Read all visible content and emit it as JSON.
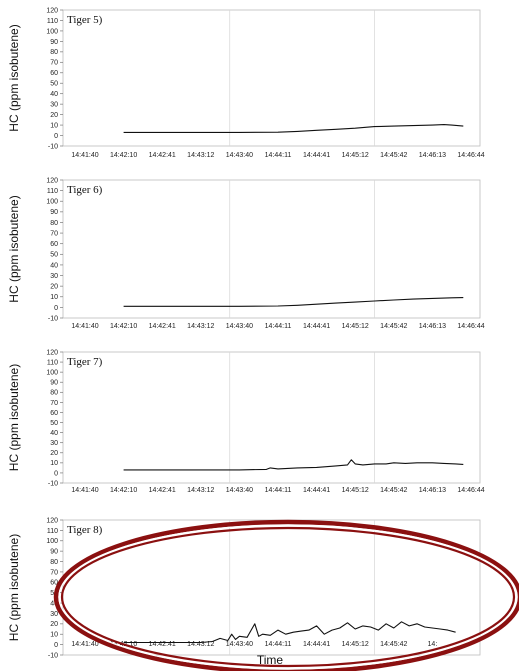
{
  "chart_data": [
    {
      "type": "line",
      "title": "Tiger 5)",
      "ylabel": "HC (ppm isobutene)",
      "xlabel": "",
      "ylim": [
        -10,
        120
      ],
      "yticks": [
        "120",
        "110",
        "100",
        "90",
        "80",
        "70",
        "60",
        "50",
        "40",
        "30",
        "20",
        "10",
        "0",
        "-10"
      ],
      "xticks": [
        "14:41:40",
        "14:42:10",
        "14:42:41",
        "14:43:12",
        "14:43:40",
        "14:44:11",
        "14:44:41",
        "14:45:12",
        "14:45:42",
        "14:46:13",
        "14:46:44"
      ],
      "grid": "vertical-lines",
      "series": [
        {
          "x": [
            1,
            2,
            3,
            4,
            5,
            5.5,
            6,
            6.5,
            7,
            7.5,
            8,
            8.5,
            9,
            9.3,
            9.5,
            9.8
          ],
          "values": [
            3,
            3,
            3,
            3,
            3.2,
            4,
            5,
            6,
            7,
            8.5,
            9,
            9.5,
            10,
            10.5,
            10,
            9
          ]
        }
      ]
    },
    {
      "type": "line",
      "title": "Tiger 6)",
      "ylabel": "HC (ppm isobutene)",
      "xlabel": "",
      "ylim": [
        -10,
        120
      ],
      "yticks": [
        "120",
        "110",
        "100",
        "90",
        "80",
        "70",
        "60",
        "50",
        "40",
        "30",
        "20",
        "10",
        "0",
        "-10"
      ],
      "xticks": [
        "14:41:40",
        "14:42:10",
        "14:42:41",
        "14:43:12",
        "14:43:40",
        "14:44:11",
        "14:44:41",
        "14:45:12",
        "14:45:42",
        "14:46:13",
        "14:46:44"
      ],
      "grid": "vertical-lines",
      "series": [
        {
          "x": [
            1,
            2,
            3,
            4,
            5,
            5.5,
            6,
            6.5,
            7,
            7.5,
            8,
            8.5,
            9,
            9.5,
            9.8
          ],
          "values": [
            1,
            1,
            1,
            1,
            1.3,
            2,
            3,
            4,
            5,
            6,
            7,
            7.8,
            8.5,
            9,
            9.2
          ]
        }
      ]
    },
    {
      "type": "line",
      "title": "Tiger 7)",
      "ylabel": "HC (ppm isobutene)",
      "xlabel": "",
      "ylim": [
        -10,
        120
      ],
      "yticks": [
        "120",
        "110",
        "100",
        "90",
        "80",
        "70",
        "60",
        "50",
        "40",
        "30",
        "20",
        "10",
        "0",
        "-10"
      ],
      "xticks": [
        "14:41:40",
        "14:42:10",
        "14:42:41",
        "14:43:12",
        "14:43:40",
        "14:44:11",
        "14:44:41",
        "14:45:12",
        "14:45:42",
        "14:46:13",
        "14:46:44"
      ],
      "grid": "vertical-lines",
      "series": [
        {
          "x": [
            1,
            2,
            3,
            4,
            4.7,
            4.8,
            5,
            5.5,
            6,
            6.5,
            6.8,
            6.9,
            7,
            7.2,
            7.5,
            7.8,
            8,
            8.3,
            8.6,
            9,
            9.3,
            9.6,
            9.8
          ],
          "values": [
            3,
            3,
            3,
            3,
            3.5,
            5,
            4,
            5,
            5.5,
            7,
            8,
            13,
            9,
            8,
            9,
            9,
            10,
            9.5,
            10,
            10,
            9.5,
            9,
            8.5
          ]
        }
      ]
    },
    {
      "type": "line",
      "title": "Tiger 8)",
      "ylabel": "HC (ppm isobutene)",
      "xlabel": "Time",
      "ylim": [
        -10,
        120
      ],
      "yticks": [
        "120",
        "110",
        "100",
        "90",
        "80",
        "70",
        "60",
        "50",
        "40",
        "30",
        "20",
        "10",
        "0",
        "-10"
      ],
      "xticks": [
        "14:41:40",
        "14:42:10",
        "14:42:41",
        "14:43:12",
        "14:43:40",
        "14:44:11",
        "14:44:41",
        "14:45:12",
        "14:45:42",
        "14:"
      ],
      "grid": "vertical-lines",
      "series": [
        {
          "x": [
            1,
            2,
            3,
            3.3,
            3.5,
            3.7,
            3.8,
            3.9,
            4,
            4.2,
            4.4,
            4.5,
            4.6,
            4.8,
            5,
            5.2,
            5.4,
            5.6,
            5.8,
            6,
            6.2,
            6.4,
            6.6,
            6.8,
            7,
            7.2,
            7.4,
            7.6,
            7.8,
            8,
            8.2,
            8.4,
            8.6,
            8.8,
            9,
            9.2,
            9.4,
            9.6
          ],
          "values": [
            2,
            2,
            2,
            3,
            6,
            4,
            10,
            5,
            8,
            7,
            20,
            8,
            10,
            9,
            14,
            10,
            12,
            13,
            14,
            18,
            10,
            14,
            16,
            21,
            15,
            18,
            17,
            14,
            20,
            16,
            22,
            18,
            20,
            17,
            16,
            15,
            14,
            12
          ]
        }
      ]
    }
  ]
}
